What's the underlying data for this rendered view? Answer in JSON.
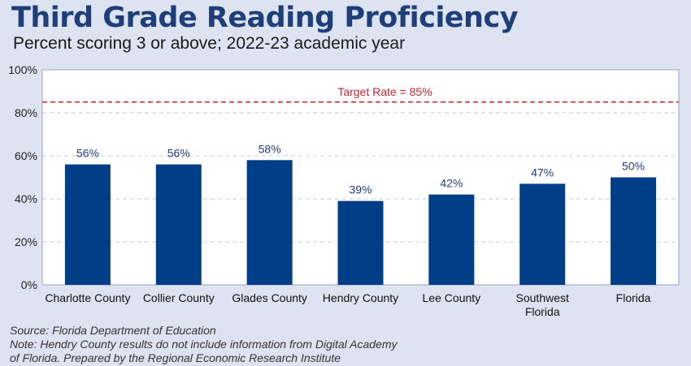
{
  "header": {
    "title": "Third Grade Reading Proficiency",
    "subtitle": "Percent scoring 3 or above; 2022-23 academic year"
  },
  "chart_data": {
    "type": "bar",
    "categories": [
      [
        "Charlotte County"
      ],
      [
        "Collier County"
      ],
      [
        "Glades County"
      ],
      [
        "Hendry County"
      ],
      [
        "Lee County"
      ],
      [
        "Southwest",
        "Florida"
      ],
      [
        "Florida"
      ]
    ],
    "values": [
      56,
      56,
      58,
      39,
      42,
      47,
      50
    ],
    "data_labels": [
      "56%",
      "56%",
      "58%",
      "39%",
      "42%",
      "47%",
      "50%"
    ],
    "ylim": [
      0,
      100
    ],
    "y_ticks": [
      0,
      20,
      40,
      60,
      80,
      100
    ],
    "y_tick_labels": [
      "0%",
      "20%",
      "40%",
      "60%",
      "80%",
      "100%"
    ],
    "target": {
      "value": 85,
      "label": "Target Rate = 85%"
    },
    "grid": true,
    "colors": {
      "bar": "#003f87",
      "target": "#c0262c",
      "grid": "#c8cdd6",
      "label": "#1f3f7a"
    }
  },
  "footer": {
    "lines": [
      "Source:  Florida Department of Education",
      "Note: Hendry County results do not include information from Digital Academy",
      "of Florida. Prepared by the Regional Economic Research Institute"
    ]
  }
}
